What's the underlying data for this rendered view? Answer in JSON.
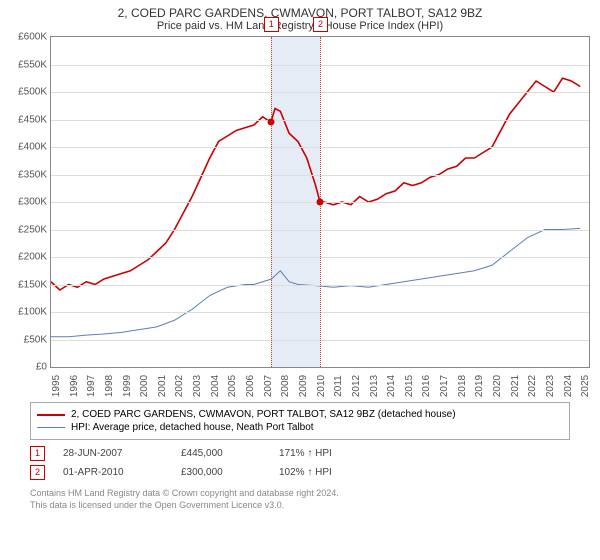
{
  "title": "2, COED PARC GARDENS, CWMAVON, PORT TALBOT, SA12 9BZ",
  "subtitle": "Price paid vs. HM Land Registry's House Price Index (HPI)",
  "chart": {
    "type": "line",
    "xlim": [
      1995,
      2025.5
    ],
    "ylim": [
      0,
      600
    ],
    "ylabel_prefix": "£",
    "ylabel_suffix": "K",
    "ytick_step": 50,
    "background_color": "#ffffff",
    "grid_color": "#dddddd",
    "series": [
      {
        "name": "2, COED PARC GARDENS, CWMAVON, PORT TALBOT, SA12 9BZ (detached house)",
        "color": "#cc0000",
        "width": 1.6,
        "data": [
          [
            1995,
            155
          ],
          [
            1995.5,
            140
          ],
          [
            1996,
            150
          ],
          [
            1996.5,
            145
          ],
          [
            1997,
            155
          ],
          [
            1997.5,
            150
          ],
          [
            1998,
            160
          ],
          [
            1998.5,
            165
          ],
          [
            1999,
            170
          ],
          [
            1999.5,
            175
          ],
          [
            2000,
            185
          ],
          [
            2000.5,
            195
          ],
          [
            2001,
            210
          ],
          [
            2001.5,
            225
          ],
          [
            2002,
            250
          ],
          [
            2002.5,
            280
          ],
          [
            2003,
            310
          ],
          [
            2003.5,
            345
          ],
          [
            2004,
            380
          ],
          [
            2004.5,
            410
          ],
          [
            2005,
            420
          ],
          [
            2005.5,
            430
          ],
          [
            2006,
            435
          ],
          [
            2006.5,
            440
          ],
          [
            2007,
            455
          ],
          [
            2007.46,
            445
          ],
          [
            2007.7,
            470
          ],
          [
            2008,
            465
          ],
          [
            2008.5,
            425
          ],
          [
            2009,
            410
          ],
          [
            2009.5,
            380
          ],
          [
            2010,
            330
          ],
          [
            2010.25,
            300
          ],
          [
            2010.5,
            300
          ],
          [
            2011,
            295
          ],
          [
            2011.5,
            300
          ],
          [
            2012,
            295
          ],
          [
            2012.5,
            310
          ],
          [
            2013,
            300
          ],
          [
            2013.5,
            305
          ],
          [
            2014,
            315
          ],
          [
            2014.5,
            320
          ],
          [
            2015,
            335
          ],
          [
            2015.5,
            330
          ],
          [
            2016,
            335
          ],
          [
            2016.5,
            345
          ],
          [
            2017,
            350
          ],
          [
            2017.5,
            360
          ],
          [
            2018,
            365
          ],
          [
            2018.5,
            380
          ],
          [
            2019,
            380
          ],
          [
            2019.5,
            390
          ],
          [
            2020,
            400
          ],
          [
            2020.5,
            430
          ],
          [
            2021,
            460
          ],
          [
            2021.5,
            480
          ],
          [
            2022,
            500
          ],
          [
            2022.5,
            520
          ],
          [
            2023,
            510
          ],
          [
            2023.5,
            500
          ],
          [
            2024,
            525
          ],
          [
            2024.5,
            520
          ],
          [
            2025,
            510
          ]
        ]
      },
      {
        "name": "HPI: Average price, detached house, Neath Port Talbot",
        "color": "#5b7fb8",
        "width": 1,
        "data": [
          [
            1995,
            55
          ],
          [
            1996,
            55
          ],
          [
            1997,
            58
          ],
          [
            1998,
            60
          ],
          [
            1999,
            63
          ],
          [
            2000,
            68
          ],
          [
            2001,
            73
          ],
          [
            2002,
            85
          ],
          [
            2003,
            105
          ],
          [
            2004,
            130
          ],
          [
            2005,
            145
          ],
          [
            2006,
            150
          ],
          [
            2006.5,
            150
          ],
          [
            2007,
            155
          ],
          [
            2007.5,
            160
          ],
          [
            2008,
            175
          ],
          [
            2008.5,
            155
          ],
          [
            2009,
            150
          ],
          [
            2010,
            148
          ],
          [
            2011,
            145
          ],
          [
            2012,
            148
          ],
          [
            2013,
            145
          ],
          [
            2014,
            150
          ],
          [
            2015,
            155
          ],
          [
            2016,
            160
          ],
          [
            2017,
            165
          ],
          [
            2018,
            170
          ],
          [
            2019,
            175
          ],
          [
            2020,
            185
          ],
          [
            2021,
            210
          ],
          [
            2022,
            235
          ],
          [
            2023,
            250
          ],
          [
            2024,
            250
          ],
          [
            2025,
            252
          ]
        ]
      }
    ],
    "band": {
      "start": 2007.46,
      "end": 2010.25,
      "color": "#e6ecf6"
    },
    "vlines": [
      2007.46,
      2010.25
    ],
    "sale_markers": [
      {
        "num": "1",
        "x": 2007.46,
        "y": 445
      },
      {
        "num": "2",
        "x": 2010.25,
        "y": 300
      }
    ],
    "xticks": [
      1995,
      1996,
      1997,
      1998,
      1999,
      2000,
      2001,
      2002,
      2003,
      2004,
      2005,
      2006,
      2007,
      2008,
      2009,
      2010,
      2011,
      2012,
      2013,
      2014,
      2015,
      2016,
      2017,
      2018,
      2019,
      2020,
      2021,
      2022,
      2023,
      2024,
      2025
    ]
  },
  "legend": [
    {
      "color": "#cc0000",
      "width": 2,
      "label": "2, COED PARC GARDENS, CWMAVON, PORT TALBOT, SA12 9BZ (detached house)"
    },
    {
      "color": "#5b7fb8",
      "width": 1,
      "label": "HPI: Average price, detached house, Neath Port Talbot"
    }
  ],
  "sales": [
    {
      "num": "1",
      "date": "28-JUN-2007",
      "price": "£445,000",
      "hpi": "171% ↑ HPI"
    },
    {
      "num": "2",
      "date": "01-APR-2010",
      "price": "£300,000",
      "hpi": "102% ↑ HPI"
    }
  ],
  "footer1": "Contains HM Land Registry data © Crown copyright and database right 2024.",
  "footer2": "This data is licensed under the Open Government Licence v3.0."
}
